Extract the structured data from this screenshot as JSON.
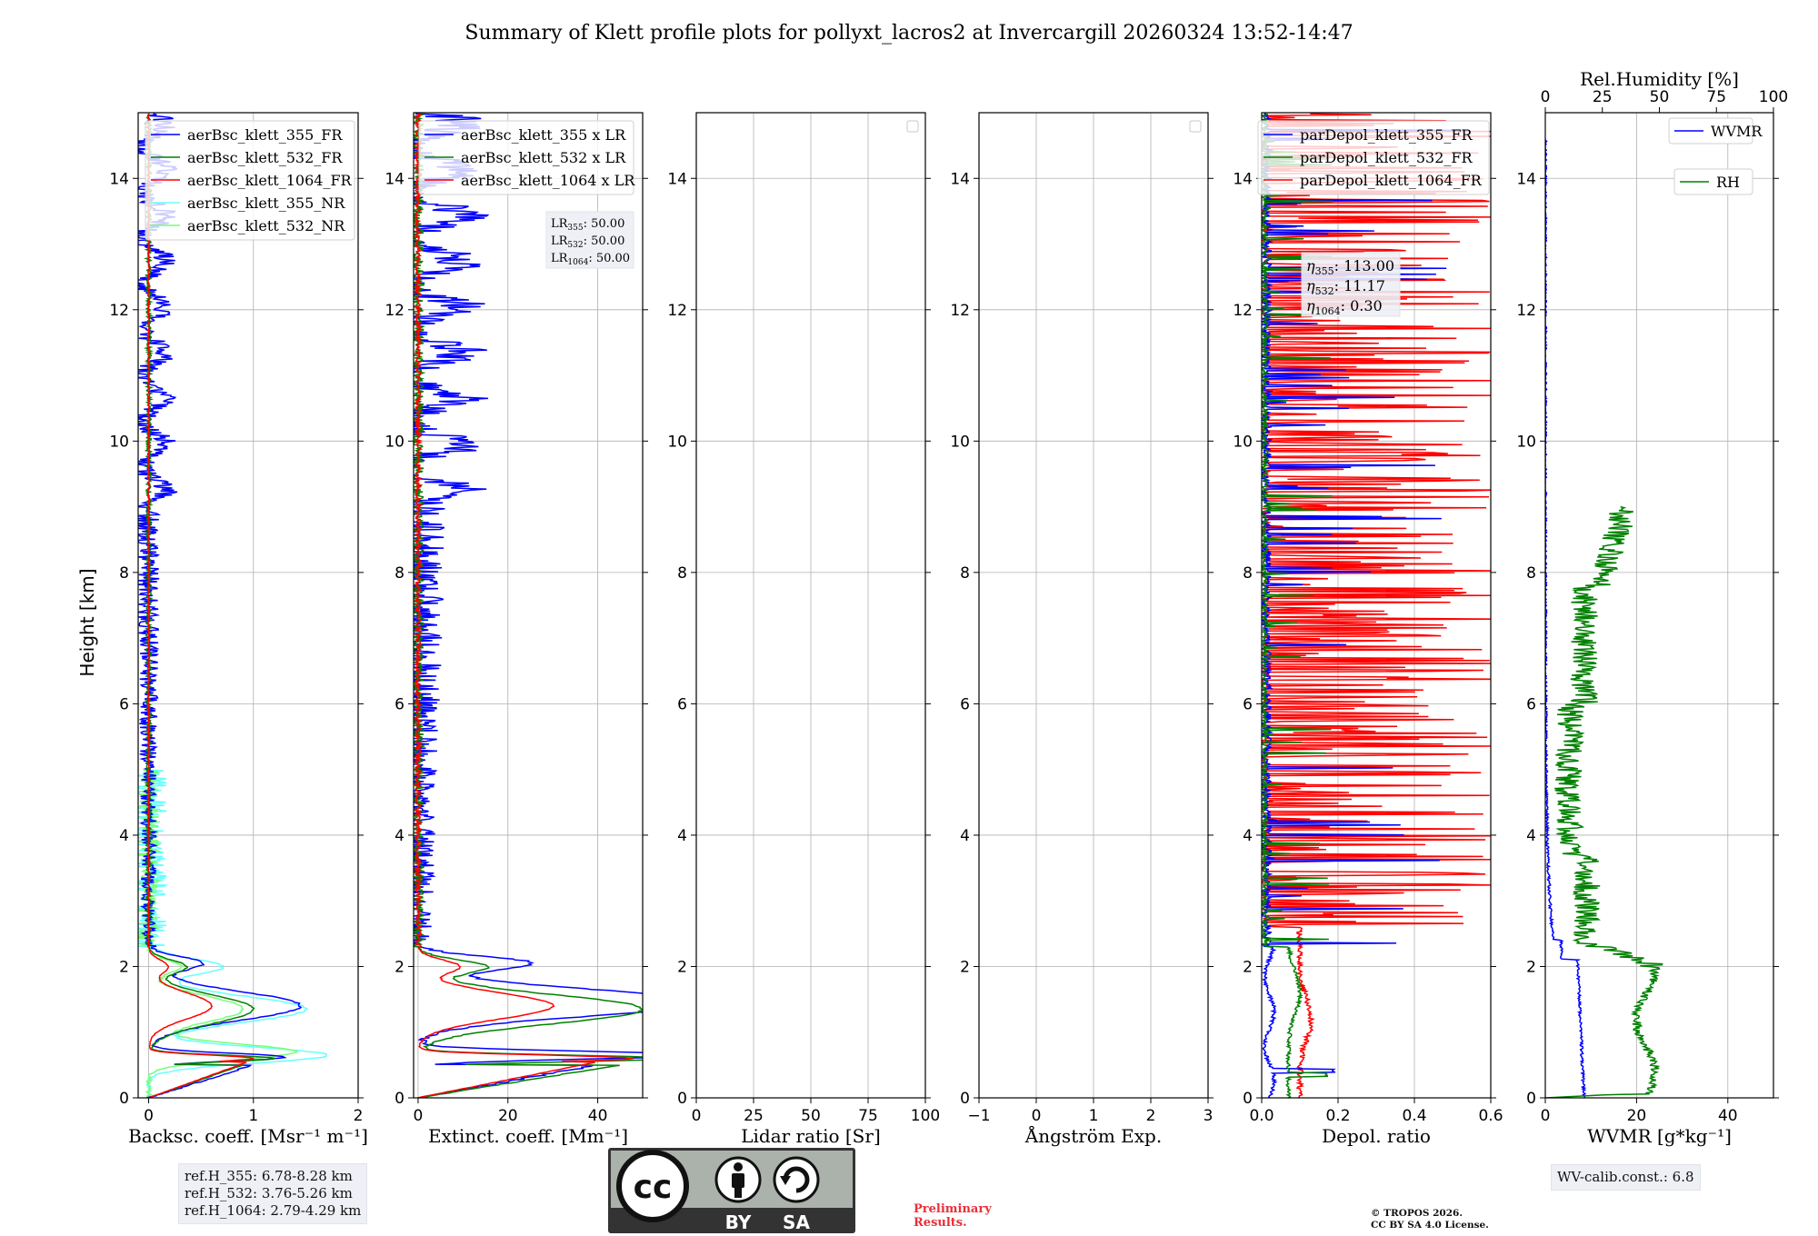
{
  "title": "Summary of Klett profile plots for pollyxt_lacros2 at Invercargill 20260324 13:52-14:47",
  "shared_ylabel": "Height [km]",
  "colors": {
    "c355": "#0000ff",
    "c532": "#008000",
    "c1064": "#ff0000",
    "c355nr": "#66ffff",
    "c532nr": "#77ff77"
  },
  "chart_data": [
    {
      "id": "backscatter",
      "type": "line",
      "xlabel": "Backsc. coeff. [Msr⁻¹ m⁻¹]",
      "xlim": [
        -0.1,
        2
      ],
      "ylim": [
        0,
        15
      ],
      "xticks": [
        0,
        1,
        2
      ],
      "yticks": [
        0,
        2,
        4,
        6,
        8,
        10,
        12,
        14
      ],
      "legend": [
        "aerBsc_klett_355_FR",
        "aerBsc_klett_532_FR",
        "aerBsc_klett_1064_FR",
        "aerBsc_klett_355_NR",
        "aerBsc_klett_532_NR"
      ],
      "series": [
        {
          "name": "aerBsc_klett_355_FR",
          "color": "#0000ff",
          "kind": "bsc355"
        },
        {
          "name": "aerBsc_klett_532_FR",
          "color": "#008000",
          "kind": "bsc532"
        },
        {
          "name": "aerBsc_klett_1064_FR",
          "color": "#ff0000",
          "kind": "bsc1064"
        },
        {
          "name": "aerBsc_klett_355_NR",
          "color": "#66ffff",
          "kind": "bsc355nr"
        },
        {
          "name": "aerBsc_klett_532_NR",
          "color": "#77ff77",
          "kind": "bsc532nr"
        }
      ]
    },
    {
      "id": "extinction",
      "type": "line",
      "xlabel": "Extinct. coeff. [Mm⁻¹]",
      "xlim": [
        -1,
        50
      ],
      "ylim": [
        0,
        15
      ],
      "xticks": [
        0,
        20,
        40
      ],
      "yticks": [
        0,
        2,
        4,
        6,
        8,
        10,
        12,
        14
      ],
      "legend": [
        "aerBsc_klett_355 x LR",
        "aerBsc_klett_532 x LR",
        "aerBsc_klett_1064 x LR"
      ],
      "lr_annotation": [
        "LR355: 50.00",
        "LR532: 50.00",
        "LR1064: 50.00"
      ],
      "lr_values": [
        "50.00",
        "50.00",
        "50.00"
      ],
      "series": [
        {
          "name": "aerBsc_klett_355 x LR",
          "color": "#0000ff",
          "kind": "ext355"
        },
        {
          "name": "aerBsc_klett_532 x LR",
          "color": "#008000",
          "kind": "ext532"
        },
        {
          "name": "aerBsc_klett_1064 x LR",
          "color": "#ff0000",
          "kind": "ext1064"
        }
      ]
    },
    {
      "id": "lidar_ratio",
      "type": "line",
      "xlabel": "Lidar ratio [Sr]",
      "xlim": [
        0,
        100
      ],
      "ylim": [
        0,
        15
      ],
      "xticks": [
        0,
        25,
        50,
        75,
        100
      ],
      "yticks": [
        0,
        2,
        4,
        6,
        8,
        10,
        12,
        14
      ],
      "series": []
    },
    {
      "id": "angstrom",
      "type": "line",
      "xlabel": "Ångström Exp.",
      "xlim": [
        -1,
        3
      ],
      "ylim": [
        0,
        15
      ],
      "xticks": [
        -1,
        0,
        1,
        2,
        3
      ],
      "yticks": [
        0,
        2,
        4,
        6,
        8,
        10,
        12,
        14
      ],
      "series": []
    },
    {
      "id": "depol",
      "type": "line",
      "xlabel": "Depol. ratio",
      "xlim": [
        0,
        0.6
      ],
      "ylim": [
        0,
        15
      ],
      "xticks": [
        0.0,
        0.2,
        0.4,
        0.6
      ],
      "yticks": [
        0,
        2,
        4,
        6,
        8,
        10,
        12,
        14
      ],
      "legend": [
        "parDepol_klett_355_FR",
        "parDepol_klett_532_FR",
        "parDepol_klett_1064_FR"
      ],
      "eta_annotation": [
        "η355: 113.00",
        "η532: 11.17",
        "η1064: 0.30"
      ],
      "eta_values": [
        "113.00",
        "11.17",
        "0.30"
      ],
      "series": [
        {
          "name": "parDepol_klett_355_FR",
          "color": "#0000ff",
          "kind": "dep355"
        },
        {
          "name": "parDepol_klett_532_FR",
          "color": "#008000",
          "kind": "dep532"
        },
        {
          "name": "parDepol_klett_1064_FR",
          "color": "#ff0000",
          "kind": "dep1064"
        }
      ]
    },
    {
      "id": "wvmr",
      "type": "line",
      "xlabel": "WVMR [g*kg⁻¹]",
      "xlim": [
        0,
        50
      ],
      "ylim": [
        0,
        15
      ],
      "xticks": [
        0,
        20,
        40
      ],
      "yticks": [
        0,
        2,
        4,
        6,
        8,
        10,
        12,
        14
      ],
      "top_xlabel": "Rel.Humidity [%]",
      "top_xlim": [
        0,
        100
      ],
      "top_xticks": [
        0,
        25,
        50,
        75,
        100
      ],
      "legend": [
        "WVMR",
        "RH"
      ],
      "series": [
        {
          "name": "WVMR",
          "color": "#0000ff",
          "kind": "wvmr"
        },
        {
          "name": "RH",
          "color": "#008000",
          "kind": "rh"
        }
      ]
    }
  ],
  "footer": {
    "refh": [
      "ref.H_355: 6.78-8.28 km",
      "ref.H_532: 3.76-5.26 km",
      "ref.H_1064: 2.79-4.29 km"
    ],
    "license_badge": {
      "cc": "cc",
      "by": "BY",
      "sa": "SA"
    },
    "preliminary": [
      "Preliminary",
      "Results."
    ],
    "copyright": [
      "© TROPOS 2026.",
      "CC BY SA 4.0 License."
    ],
    "wv_calib": "WV-calib.const.: 6.8"
  }
}
